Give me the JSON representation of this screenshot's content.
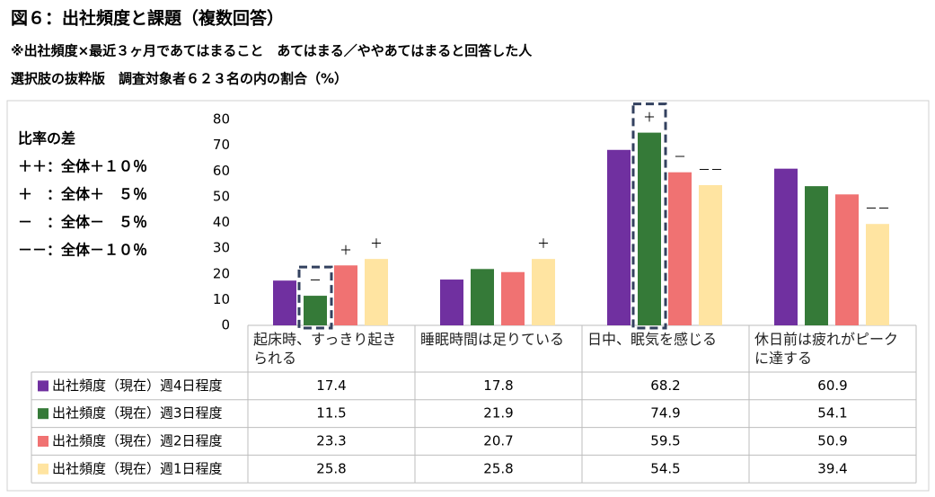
{
  "chart_data": {
    "type": "bar",
    "title": "図６：出社頻度と課題（複数回答）",
    "subtitle": "※出社頻度×最近３ヶ月であてはまること　あてはまる／ややあてはまると回答した人",
    "subtitle2": "選択肢の抜粋版　調査対象者６２３名の内の割合（%）",
    "notes": [
      "比率の差",
      "＋＋：全体＋１０％",
      "＋　：全体＋　５％",
      "－　：全体－　５％",
      "－－：全体－１０％"
    ],
    "categories": [
      "起床時、すっきり起きられる",
      "睡眠時間は足りている",
      "日中、眠気を感じる",
      "休日前は疲れがピークに達する"
    ],
    "series": [
      {
        "name": "出社頻度（現在）週4日程度",
        "color": "#7030a0",
        "values": [
          17.4,
          17.8,
          68.2,
          60.9
        ],
        "annotations": [
          null,
          null,
          null,
          null
        ],
        "highlight": [
          false,
          false,
          false,
          false
        ]
      },
      {
        "name": "出社頻度（現在）週3日程度",
        "color": "#357a38",
        "values": [
          11.5,
          21.9,
          74.9,
          54.1
        ],
        "annotations": [
          "－",
          null,
          "＋",
          null
        ],
        "highlight": [
          true,
          false,
          true,
          false
        ]
      },
      {
        "name": "出社頻度（現在）週2日程度",
        "color": "#f07272",
        "values": [
          23.3,
          20.7,
          59.5,
          50.9
        ],
        "annotations": [
          "＋",
          null,
          "－",
          null
        ],
        "highlight": [
          false,
          false,
          false,
          false
        ]
      },
      {
        "name": "出社頻度（現在）週1日程度",
        "color": "#ffe4a1",
        "values": [
          25.8,
          25.8,
          54.5,
          39.4
        ],
        "annotations": [
          "＋",
          "＋",
          "－－",
          "－－"
        ],
        "highlight": [
          false,
          false,
          false,
          false
        ]
      }
    ],
    "ylim": [
      0,
      80
    ],
    "yticks": [
      0,
      10,
      20,
      30,
      40,
      50,
      60,
      70,
      80
    ],
    "grid": false
  }
}
